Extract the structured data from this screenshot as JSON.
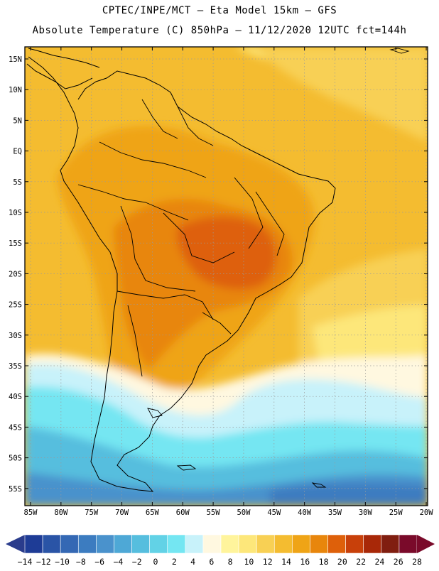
{
  "header": {
    "line1": "CPTEC/INPE/MCT –  Eta Model 15km – GFS",
    "line2": "Absolute Temperature (C) 850hPa – 11/12/2020 12UTC fct=144h"
  },
  "axes": {
    "lat_labels": [
      "15N",
      "10N",
      "5N",
      "EQ",
      "5S",
      "10S",
      "15S",
      "20S",
      "25S",
      "30S",
      "35S",
      "40S",
      "45S",
      "50S",
      "55S"
    ],
    "lon_labels": [
      "85W",
      "80W",
      "75W",
      "70W",
      "65W",
      "60W",
      "55W",
      "50W",
      "45W",
      "40W",
      "35W",
      "30W",
      "25W",
      "20W"
    ]
  },
  "colorbar": {
    "labels": [
      "-14",
      "-12",
      "-10",
      "-8",
      "-6",
      "-4",
      "-2",
      "0",
      "2",
      "4",
      "6",
      "8",
      "10",
      "12",
      "14",
      "16",
      "18",
      "20",
      "22",
      "24",
      "26",
      "28"
    ],
    "colors": [
      "#1e3c96",
      "#2a54a6",
      "#3468b4",
      "#3c7cc0",
      "#4a92cc",
      "#4ea8d6",
      "#56bede",
      "#62d2e6",
      "#74e6f2",
      "#c8f2fa",
      "#fff8e0",
      "#fff49c",
      "#fde77a",
      "#f8d054",
      "#f4bc30",
      "#efa416",
      "#e8860c",
      "#de600a",
      "#c8400a",
      "#a82808",
      "#801e10",
      "#7a0a2a"
    ],
    "low_color": "#2a3c8c",
    "high_color": "#7a0a2a"
  },
  "map_colors": {
    "ocean_warm": "#f4bc30",
    "ocean_mid": "#f8d054",
    "ocean_light": "#fde77a",
    "ocean_pale": "#fff49c",
    "land_hot": "#efa416",
    "land_hotter": "#e8860c",
    "core_hot": "#de600a",
    "cold_cream": "#fff8e0",
    "cold_pale": "#c8f2fa",
    "cold_cyan": "#74e6f2",
    "cold_mid": "#56bede",
    "cold_deep": "#4a92cc",
    "cold_deeper": "#3c7cc0"
  }
}
